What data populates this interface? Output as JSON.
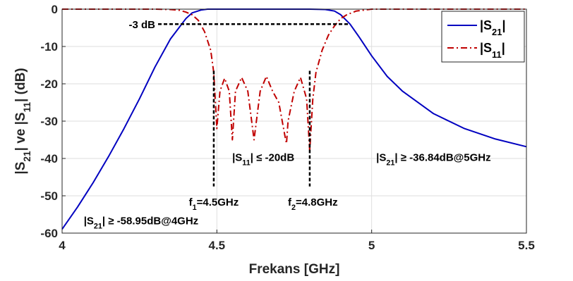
{
  "chart_data": {
    "type": "line",
    "xlabel": "Frekans [GHz]",
    "ylabel": {
      "parts": [
        [
          "|S",
          "normal"
        ],
        [
          "21",
          "sub"
        ],
        [
          "|  ve  |S",
          "normal"
        ],
        [
          "11",
          "sub"
        ],
        [
          "|  (dB)",
          "normal"
        ]
      ]
    },
    "xlim": [
      4,
      5.5
    ],
    "ylim": [
      -60,
      0
    ],
    "xticks": [
      4,
      4.5,
      5,
      5.5
    ],
    "xtick_labels": [
      "4",
      "4.5",
      "5",
      "5.5"
    ],
    "yticks": [
      0,
      -10,
      -20,
      -30,
      -40,
      -50,
      -60
    ],
    "ytick_labels": [
      "0",
      "-10",
      "-20",
      "-30",
      "-40",
      "-50",
      "-60"
    ],
    "grid": true,
    "legend_position": "top-right",
    "series": [
      {
        "id": "s21",
        "legend": [
          [
            "|S",
            "normal"
          ],
          [
            "21",
            "sub"
          ],
          [
            "|",
            "normal"
          ]
        ],
        "color": "#0000c0",
        "style": "solid",
        "x": [
          4.0,
          4.05,
          4.1,
          4.15,
          4.2,
          4.25,
          4.3,
          4.35,
          4.4,
          4.42,
          4.45,
          4.47,
          4.5,
          4.6,
          4.7,
          4.8,
          4.85,
          4.88,
          4.9,
          4.93,
          4.96,
          5.0,
          5.05,
          5.1,
          5.2,
          5.3,
          5.4,
          5.5
        ],
        "y": [
          -58.95,
          -53.0,
          -46.5,
          -39.5,
          -32.0,
          -24.0,
          -15.5,
          -8.0,
          -2.5,
          -1.0,
          -0.2,
          0.0,
          0.0,
          0.0,
          0.0,
          0.0,
          -0.1,
          -0.5,
          -1.5,
          -4.0,
          -7.5,
          -12.5,
          -18.0,
          -22.0,
          -28.0,
          -32.0,
          -34.8,
          -36.84
        ]
      },
      {
        "id": "s11",
        "legend": [
          [
            "|S",
            "normal"
          ],
          [
            "11",
            "sub"
          ],
          [
            "|",
            "normal"
          ]
        ],
        "color": "#c00000",
        "style": "dashdot",
        "x": [
          4.0,
          4.3,
          4.35,
          4.38,
          4.4,
          4.42,
          4.44,
          4.46,
          4.48,
          4.49,
          4.5,
          4.51,
          4.525,
          4.54,
          4.55,
          4.56,
          4.58,
          4.6,
          4.62,
          4.64,
          4.66,
          4.68,
          4.7,
          4.72,
          4.725,
          4.73,
          4.75,
          4.77,
          4.79,
          4.8,
          4.81,
          4.82,
          4.84,
          4.86,
          4.88,
          4.9,
          4.92,
          4.95,
          5.0,
          5.5
        ],
        "y": [
          0.0,
          0.0,
          -0.1,
          -0.3,
          -0.8,
          -1.5,
          -3.0,
          -6.0,
          -11.0,
          -17.0,
          -32.0,
          -22.0,
          -18.5,
          -22.0,
          -35.0,
          -22.0,
          -18.3,
          -22.0,
          -35.0,
          -22.0,
          -18.0,
          -22.0,
          -25.0,
          -34.0,
          -36.0,
          -30.0,
          -22.0,
          -18.3,
          -24.0,
          -38.0,
          -24.0,
          -17.0,
          -11.0,
          -7.0,
          -4.5,
          -2.5,
          -1.5,
          -0.5,
          0.0,
          0.0
        ]
      }
    ],
    "annotations": [
      {
        "id": "3db",
        "text": "-3 dB",
        "x": 4.31,
        "y": -4.0
      },
      {
        "id": "s11-20",
        "text": [
          [
            "|S",
            "normal"
          ],
          [
            "11",
            "sub"
          ],
          [
            "| ≤ -20dB",
            "normal"
          ]
        ],
        "x": 4.65,
        "y": -39.5
      },
      {
        "id": "f1",
        "text": [
          [
            "f",
            "normal"
          ],
          [
            "1",
            "sub"
          ],
          [
            "=4.5GHz",
            "normal"
          ]
        ],
        "x": 4.49,
        "y": -51.5
      },
      {
        "id": "f2",
        "text": [
          [
            "f",
            "normal"
          ],
          [
            "2",
            "sub"
          ],
          [
            "=4.8GHz",
            "normal"
          ]
        ],
        "x": 4.81,
        "y": -51.5
      },
      {
        "id": "s21-4ghz",
        "text": [
          [
            "|S",
            "normal"
          ],
          [
            "21",
            "sub"
          ],
          [
            "| ≥ -58.95dB@4GHz",
            "normal"
          ]
        ],
        "x": 4.07,
        "y": -56.5
      },
      {
        "id": "s21-5ghz",
        "text": [
          [
            "|S",
            "normal"
          ],
          [
            "21",
            "sub"
          ],
          [
            "| ≥ -36.84dB@5GHz",
            "normal"
          ]
        ],
        "x": 5.2,
        "y": -39.5
      }
    ],
    "markers": {
      "hline_3db": {
        "y": -4.0,
        "x1": 4.31,
        "x2": 4.93
      },
      "vline_f1": {
        "x": 4.49,
        "y1": -16.5,
        "y2": -47.5
      },
      "vline_f2": {
        "x": 4.8,
        "y1": -16.5,
        "y2": -47.5
      }
    }
  }
}
